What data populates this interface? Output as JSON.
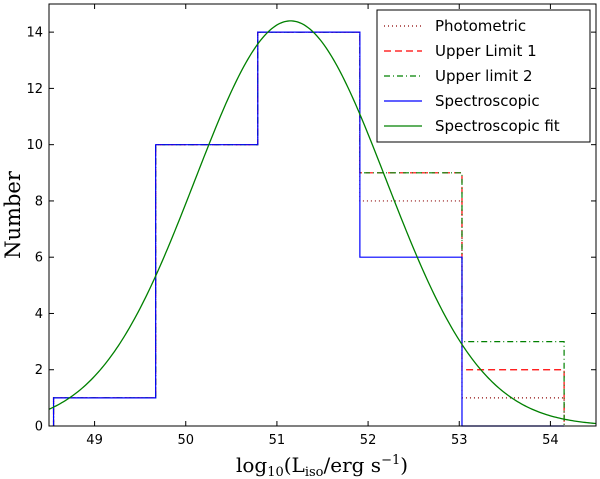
{
  "chart_data": {
    "type": "step-histogram",
    "xlabel_main": "log",
    "xlabel_sub10": "10",
    "xlabel_open": "(L",
    "xlabel_iso": "iso",
    "xlabel_mid": "/erg s",
    "xlabel_sup": "−1",
    "xlabel_close": ")",
    "ylabel": "Number",
    "xlim": [
      48.5,
      54.5
    ],
    "ylim": [
      0,
      15
    ],
    "xticks": [
      49,
      50,
      51,
      52,
      53,
      54
    ],
    "yticks": [
      0,
      2,
      4,
      6,
      8,
      10,
      12,
      14
    ],
    "bin_edges": [
      48.55,
      49.67,
      50.79,
      51.91,
      53.03,
      54.15
    ],
    "series": [
      {
        "name": "Photometric",
        "color": "#8b0000",
        "dash": "1,3",
        "values": [
          1,
          10,
          14,
          8,
          1
        ]
      },
      {
        "name": "Upper Limit 1",
        "color": "#ff0000",
        "dash": "7,4",
        "values": [
          1,
          10,
          14,
          9,
          2
        ]
      },
      {
        "name": "Upper limit 2",
        "color": "#008000",
        "dash": "6,3,1,3",
        "values": [
          1,
          10,
          14,
          9,
          3
        ]
      },
      {
        "name": "Spectroscopic",
        "color": "#0000ff",
        "dash": "",
        "values": [
          1,
          10,
          14,
          6,
          0
        ]
      }
    ],
    "fit": {
      "name": "Spectroscopic fit",
      "color": "#008000",
      "type": "gaussian",
      "amplitude": 14.4,
      "mean": 51.15,
      "sigma": 1.05
    }
  }
}
